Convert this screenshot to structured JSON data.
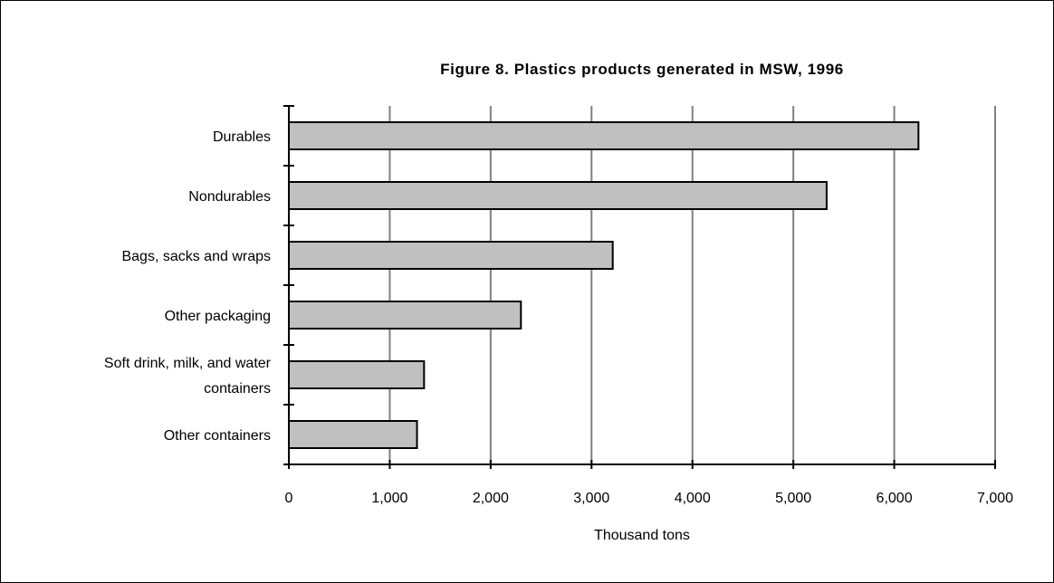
{
  "chart_data": {
    "type": "bar",
    "orientation": "horizontal",
    "title": "Figure 8. Plastics products generated in MSW, 1996",
    "xlabel": "Thousand tons",
    "ylabel": "",
    "categories": [
      [
        "Durables"
      ],
      [
        "Nondurables"
      ],
      [
        "Bags, sacks and wraps"
      ],
      [
        "Other packaging"
      ],
      [
        "Soft drink, milk, and water",
        "containers"
      ],
      [
        "Other containers"
      ]
    ],
    "values": [
      6240,
      5330,
      3210,
      2300,
      1340,
      1270
    ],
    "xlim": [
      0,
      7000
    ],
    "xticks": [
      0,
      1000,
      2000,
      3000,
      4000,
      5000,
      6000,
      7000
    ],
    "xtick_labels": [
      "0",
      "1,000",
      "2,000",
      "3,000",
      "4,000",
      "5,000",
      "6,000",
      "7,000"
    ],
    "grid": "vertical",
    "legend": "none",
    "colors": {
      "bar_fill": "#c0c0c0",
      "bar_stroke": "#000000",
      "gridline": "#808080",
      "axis": "#000000"
    }
  }
}
